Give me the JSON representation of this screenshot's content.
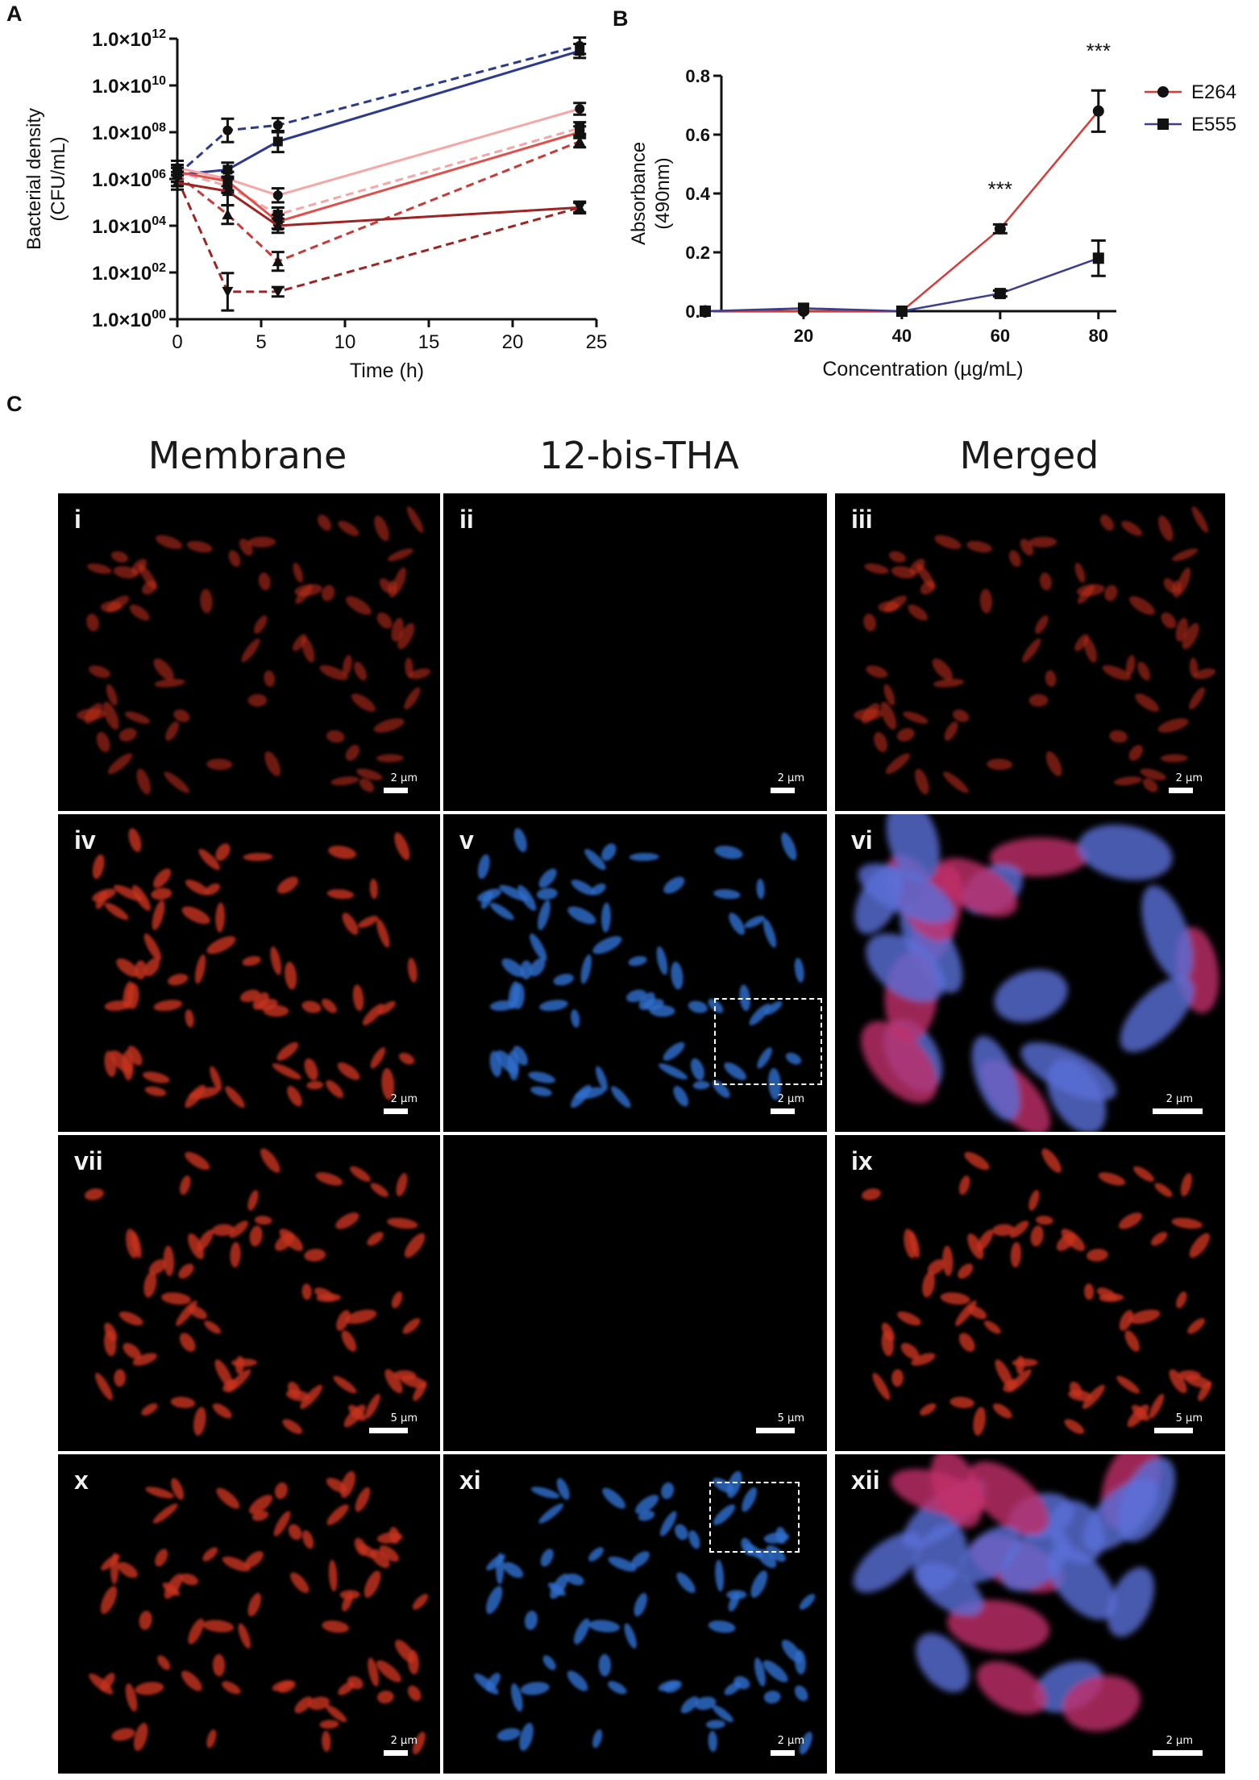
{
  "panel_labels": {
    "a": "A",
    "b": "B",
    "c": "C"
  },
  "chart_data": [
    {
      "type": "line",
      "panel": "A",
      "xlabel": "Time (h)",
      "ylabel_line1": "Bacterial density",
      "ylabel_line2": "(CFU/mL)",
      "xlim": [
        0,
        25
      ],
      "x_ticks": [
        "0",
        "5",
        "10",
        "15",
        "20",
        "25"
      ],
      "y_scale": "log",
      "ylim": [
        1,
        1000000000000
      ],
      "y_ticks": [
        {
          "base": "1.0×10",
          "exp": "12"
        },
        {
          "base": "1.0×10",
          "exp": "10"
        },
        {
          "base": "1.0×10",
          "exp": "08"
        },
        {
          "base": "1.0×10",
          "exp": "06"
        },
        {
          "base": "1.0×10",
          "exp": "04"
        },
        {
          "base": "1.0×10",
          "exp": "02"
        },
        {
          "base": "1.0×10",
          "exp": "00"
        }
      ],
      "series": [
        {
          "color": "#2b3a8f",
          "dashed": true,
          "marker": "circle",
          "x": [
            0,
            3,
            6,
            24
          ],
          "y": [
            1500000,
            120000000,
            200000000,
            500000000000
          ],
          "err": [
            0.3,
            0.5,
            0.3,
            0.35
          ]
        },
        {
          "color": "#2b3a8f",
          "dashed": false,
          "marker": "square",
          "x": [
            0,
            3,
            6,
            24
          ],
          "y": [
            1500000,
            2500000,
            40000000,
            300000000000
          ],
          "err": [
            0.3,
            0.3,
            0.45,
            0.3
          ]
        },
        {
          "color": "#f5a7a7",
          "dashed": false,
          "marker": "circle",
          "x": [
            0,
            3,
            6,
            24
          ],
          "y": [
            3000000,
            1000000,
            200000,
            1000000000
          ],
          "err": [
            0.3,
            0.3,
            0.3,
            0.25
          ]
        },
        {
          "color": "#f5a7a7",
          "dashed": true,
          "marker": "square",
          "x": [
            0,
            3,
            6,
            24
          ],
          "y": [
            2000000,
            500000,
            30000,
            150000000
          ],
          "err": [
            0.3,
            0.3,
            0.3,
            0.25
          ]
        },
        {
          "color": "#e0504a",
          "dashed": false,
          "marker": "square",
          "x": [
            0,
            3,
            6,
            24
          ],
          "y": [
            2000000,
            800000,
            15000,
            100000000
          ],
          "err": [
            0.3,
            0.4,
            0.3,
            0.25
          ]
        },
        {
          "color": "#c73a35",
          "dashed": true,
          "marker": "triangle",
          "x": [
            0,
            3,
            6,
            24
          ],
          "y": [
            1500000,
            30000,
            300,
            40000000
          ],
          "err": [
            0.3,
            0.4,
            0.4,
            0.25
          ]
        },
        {
          "color": "#9e2424",
          "dashed": false,
          "marker": "triangle",
          "x": [
            0,
            3,
            6,
            24
          ],
          "y": [
            700000,
            300000,
            10000,
            60000
          ],
          "err": [
            0.3,
            0.6,
            0.3,
            0.25
          ]
        },
        {
          "color": "#9e2424",
          "dashed": true,
          "marker": "triangle-down",
          "x": [
            0,
            3,
            6,
            24
          ],
          "y": [
            1000000,
            15,
            15,
            60000
          ],
          "err": [
            0.3,
            0.8,
            0.2,
            0.2
          ]
        }
      ]
    },
    {
      "type": "line",
      "panel": "B",
      "xlabel": "Concentration (µg/mL)",
      "ylabel_line1": "Absorbance",
      "ylabel_line2": "(490nm)",
      "xlim": [
        0,
        82
      ],
      "ylim": [
        0,
        0.8
      ],
      "x_ticks": [
        "20",
        "40",
        "60",
        "80"
      ],
      "y_ticks": [
        "0.0",
        "0.2",
        "0.4",
        "0.6",
        "0.8"
      ],
      "annotations": [
        {
          "text": "***",
          "x": 60,
          "y": 0.39
        },
        {
          "text": "***",
          "x": 80,
          "y": 0.86
        }
      ],
      "series": [
        {
          "name": "E264",
          "color": "#d93a36",
          "marker": "circle",
          "x": [
            0,
            20,
            40,
            60,
            80
          ],
          "y": [
            0.0,
            0.0,
            0.0,
            0.28,
            0.68
          ],
          "err": [
            0.005,
            0.005,
            0.005,
            0.015,
            0.07
          ]
        },
        {
          "name": "E555",
          "color": "#3a3f8f",
          "marker": "square",
          "x": [
            0,
            20,
            40,
            60,
            80
          ],
          "y": [
            0.0,
            0.01,
            0.0,
            0.06,
            0.18
          ],
          "err": [
            0.005,
            0.005,
            0.005,
            0.01,
            0.06
          ]
        }
      ]
    }
  ],
  "panel_c": {
    "column_headers": [
      "Membrane",
      "12-bis-THA",
      "Merged"
    ],
    "tiles": [
      {
        "label": "i",
        "scale": "2 µm",
        "kind": "red"
      },
      {
        "label": "ii",
        "scale": "2 µm",
        "kind": "black"
      },
      {
        "label": "iii",
        "scale": "2 µm",
        "kind": "red"
      },
      {
        "label": "iv",
        "scale": "2 µm",
        "kind": "red"
      },
      {
        "label": "v",
        "scale": "2 µm",
        "kind": "blue"
      },
      {
        "label": "vi",
        "scale": "2 µm",
        "kind": "merge"
      },
      {
        "label": "vii",
        "scale": "5 µm",
        "kind": "red"
      },
      {
        "label": "",
        "scale": "5 µm",
        "kind": "black"
      },
      {
        "label": "ix",
        "scale": "5 µm",
        "kind": "red"
      },
      {
        "label": "x",
        "scale": "2 µm",
        "kind": "red"
      },
      {
        "label": "xi",
        "scale": "2 µm",
        "kind": "blue"
      },
      {
        "label": "xii",
        "scale": "2 µm",
        "kind": "merge"
      }
    ]
  }
}
